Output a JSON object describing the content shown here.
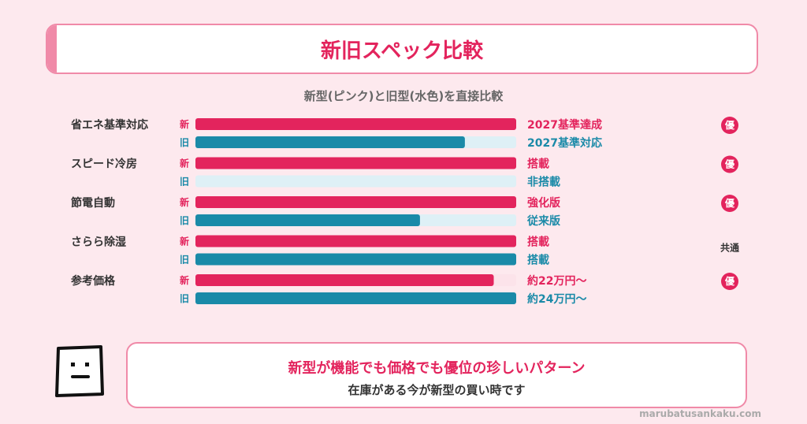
{
  "header": {
    "title": "新旧スペック比較"
  },
  "subtitle": "新型(ピンク)と旧型(水色)を直接比較",
  "colors": {
    "new_bar": "#e3245d",
    "new_track": "#fce3ea",
    "old_bar": "#1a8aa8",
    "old_track": "#def0f6",
    "new_text": "#e3245d",
    "old_text": "#1a8aa8",
    "badge": "#e3245d"
  },
  "chart_data": {
    "type": "bar",
    "orientation": "horizontal",
    "xlim": [
      0,
      1
    ],
    "legend_tags": {
      "new": "新",
      "old": "旧"
    },
    "categories": [
      "省エネ基準対応",
      "スピード冷房",
      "節電自動",
      "さらら除湿",
      "参考価格"
    ],
    "series": [
      {
        "name": "新",
        "values": [
          1.0,
          1.0,
          1.0,
          1.0,
          0.93
        ],
        "labels": [
          "2027基準達成",
          "搭載",
          "強化版",
          "搭載",
          "約22万円〜"
        ]
      },
      {
        "name": "旧",
        "values": [
          0.84,
          0.0,
          0.7,
          1.0,
          1.0
        ],
        "labels": [
          "2027基準対応",
          "非搭載",
          "従来版",
          "搭載",
          "約24万円〜"
        ]
      }
    ],
    "verdicts": [
      "優",
      "優",
      "優",
      "共通",
      "優"
    ],
    "verdict_style": [
      "badge",
      "badge",
      "badge",
      "text",
      "badge"
    ]
  },
  "message": {
    "line1": "新型が機能でも価格でも優位の珍しいパターン",
    "line2": "在庫がある今が新型の買い時です"
  },
  "footer": "marubatusankaku.com"
}
